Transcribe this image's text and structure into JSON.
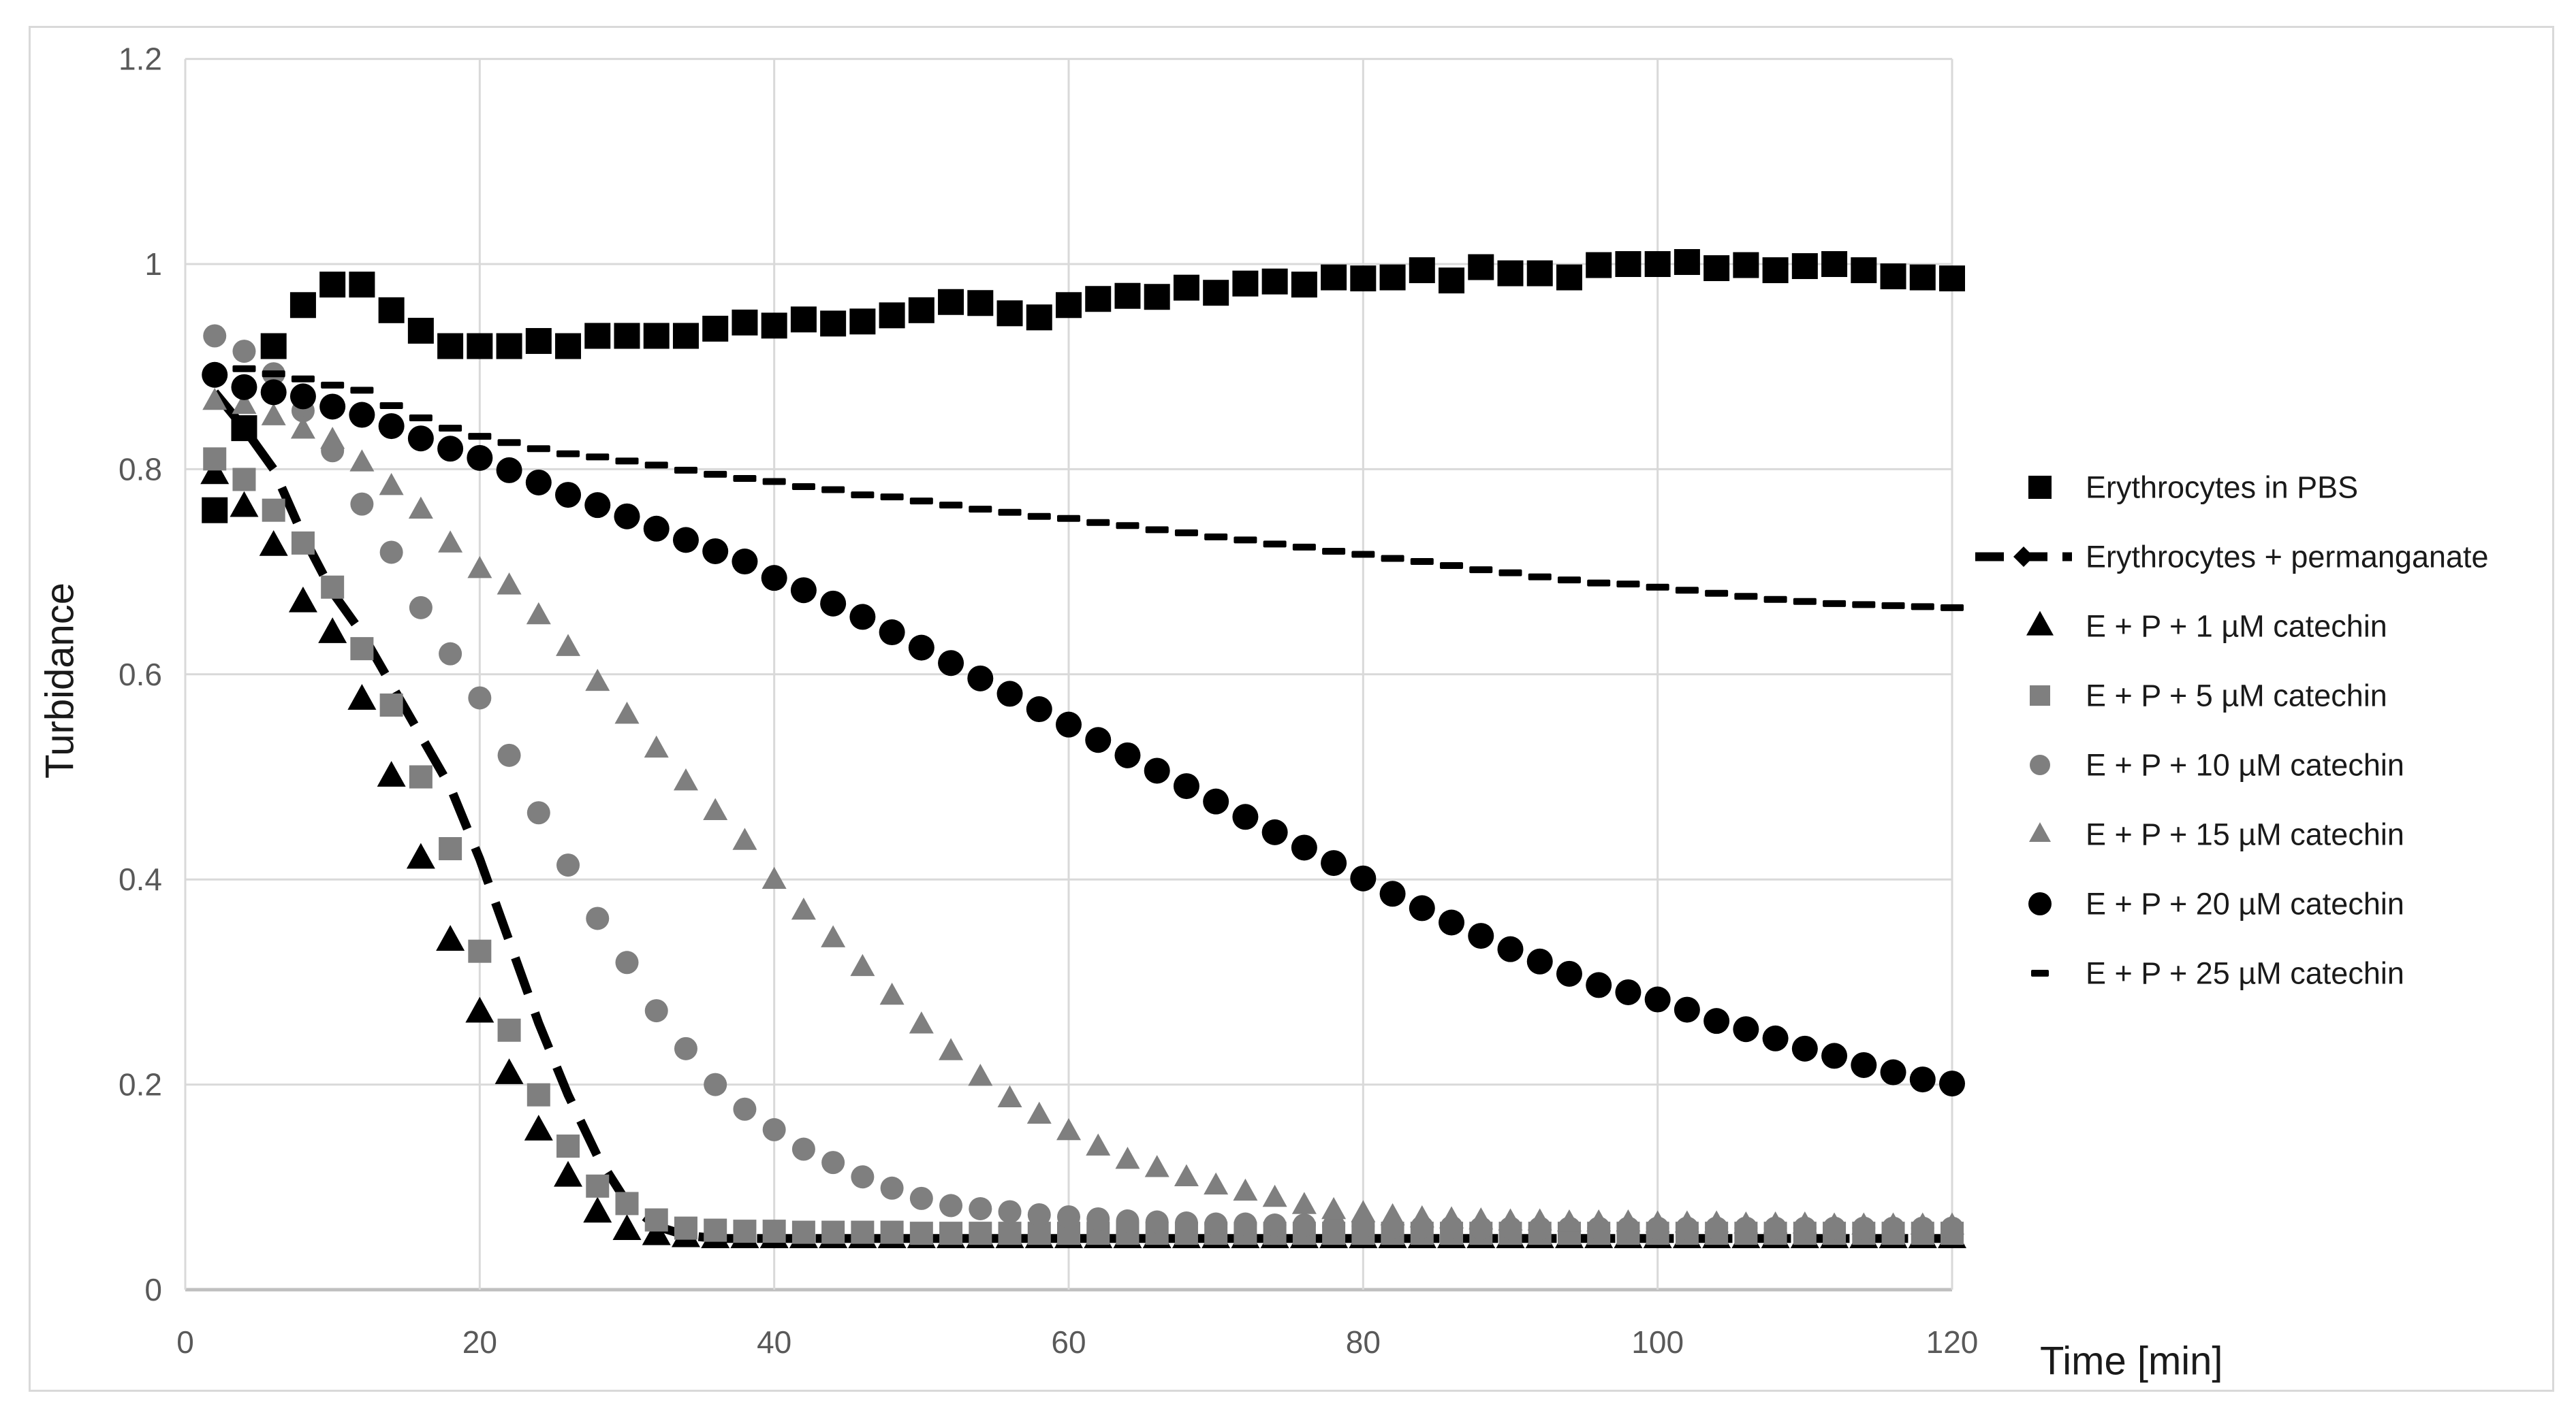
{
  "chart_data": {
    "type": "scatter",
    "title": "",
    "xlabel": "Time [min]",
    "ylabel": "Turbidance",
    "xlim": [
      0,
      120
    ],
    "ylim": [
      0,
      1.2
    ],
    "x_ticks": [
      0,
      20,
      40,
      60,
      80,
      100,
      120
    ],
    "y_ticks": [
      0,
      0.2,
      0.4,
      0.6,
      0.8,
      1,
      1.2
    ],
    "y_tick_labels": [
      "0",
      "0.2",
      "0.4",
      "0.6",
      "0.8",
      "1",
      "1.2"
    ],
    "grid": true,
    "legend_position": "right",
    "colors": {
      "black": "#000000",
      "gray": "#7f7f7f",
      "gridline": "#d9d9d9",
      "axis_line": "#bfbfbf",
      "tick_label": "#595959",
      "axis_title": "#1a1a1a",
      "legend_text": "#1a1a1a"
    },
    "series": [
      {
        "name": "Erythrocytes in PBS",
        "marker": "square",
        "color": "#000000",
        "size": 38,
        "line": "none",
        "x": [
          2,
          4,
          6,
          8,
          10,
          12,
          14,
          16,
          18,
          20,
          22,
          24,
          26,
          28,
          30,
          32,
          34,
          36,
          38,
          40,
          42,
          44,
          46,
          48,
          50,
          52,
          54,
          56,
          58,
          60,
          62,
          64,
          66,
          68,
          70,
          72,
          74,
          76,
          78,
          80,
          82,
          84,
          86,
          88,
          90,
          92,
          94,
          96,
          98,
          100,
          102,
          104,
          106,
          108,
          110,
          112,
          114,
          116,
          118,
          120
        ],
        "y": [
          0.76,
          0.84,
          0.92,
          0.96,
          0.98,
          0.98,
          0.955,
          0.935,
          0.92,
          0.92,
          0.92,
          0.925,
          0.92,
          0.93,
          0.93,
          0.93,
          0.93,
          0.937,
          0.943,
          0.94,
          0.946,
          0.942,
          0.944,
          0.95,
          0.955,
          0.963,
          0.962,
          0.952,
          0.948,
          0.96,
          0.966,
          0.969,
          0.968,
          0.977,
          0.972,
          0.981,
          0.983,
          0.98,
          0.987,
          0.986,
          0.987,
          0.994,
          0.984,
          0.997,
          0.991,
          0.991,
          0.987,
          0.999,
          1.0,
          1.0,
          1.002,
          0.996,
          0.999,
          0.994,
          0.998,
          1.0,
          0.994,
          0.988,
          0.987,
          0.986
        ]
      },
      {
        "name": "Erythrocytes + permanganate",
        "marker": "none",
        "color": "#000000",
        "size": 13,
        "line": "dashed",
        "x": [
          2,
          4,
          6,
          8,
          10,
          12,
          14,
          16,
          18,
          20,
          22,
          24,
          26,
          28,
          30,
          32,
          34,
          36,
          38,
          40,
          42,
          44,
          46,
          48,
          50,
          52,
          54,
          56,
          58,
          60,
          62,
          64,
          66,
          68,
          70,
          72,
          74,
          76,
          78,
          80,
          82,
          84,
          86,
          88,
          90,
          92,
          94,
          96,
          98,
          100,
          102,
          104,
          106,
          108,
          110,
          112,
          114,
          116,
          118,
          120
        ],
        "y": [
          0.875,
          0.84,
          0.8,
          0.735,
          0.68,
          0.64,
          0.59,
          0.54,
          0.49,
          0.42,
          0.34,
          0.26,
          0.19,
          0.13,
          0.085,
          0.062,
          0.053,
          0.05,
          0.05,
          0.05,
          0.05,
          0.05,
          0.05,
          0.05,
          0.05,
          0.05,
          0.05,
          0.05,
          0.05,
          0.05,
          0.05,
          0.05,
          0.05,
          0.05,
          0.05,
          0.05,
          0.05,
          0.05,
          0.05,
          0.05,
          0.05,
          0.05,
          0.05,
          0.05,
          0.05,
          0.05,
          0.05,
          0.05,
          0.05,
          0.05,
          0.05,
          0.05,
          0.05,
          0.05,
          0.05,
          0.05,
          0.05,
          0.05,
          0.05,
          0.05
        ]
      },
      {
        "name": "E + P + 1 µM catechin",
        "marker": "triangle",
        "color": "#000000",
        "size": 42,
        "line": "none",
        "x": [
          2,
          4,
          6,
          8,
          10,
          12,
          14,
          16,
          18,
          20,
          22,
          24,
          26,
          28,
          30,
          32,
          34,
          36,
          38,
          40,
          42,
          44,
          46,
          48,
          50,
          52,
          54,
          56,
          58,
          60,
          62,
          64,
          66,
          68,
          70,
          72,
          74,
          76,
          78,
          80,
          82,
          84,
          86,
          88,
          90,
          92,
          94,
          96,
          98,
          100,
          102,
          104,
          106,
          108,
          110,
          112,
          114,
          116,
          118,
          120
        ],
        "y": [
          0.795,
          0.763,
          0.725,
          0.67,
          0.64,
          0.575,
          0.5,
          0.42,
          0.34,
          0.27,
          0.21,
          0.155,
          0.11,
          0.075,
          0.058,
          0.053,
          0.051,
          0.05,
          0.05,
          0.05,
          0.05,
          0.05,
          0.05,
          0.05,
          0.05,
          0.05,
          0.05,
          0.05,
          0.05,
          0.05,
          0.05,
          0.05,
          0.05,
          0.05,
          0.05,
          0.05,
          0.05,
          0.05,
          0.05,
          0.05,
          0.05,
          0.05,
          0.05,
          0.05,
          0.05,
          0.05,
          0.05,
          0.05,
          0.05,
          0.05,
          0.05,
          0.05,
          0.05,
          0.05,
          0.05,
          0.05,
          0.05,
          0.05,
          0.05,
          0.05
        ]
      },
      {
        "name": "E + P + 5 µM catechin",
        "marker": "square",
        "color": "#7f7f7f",
        "size": 34,
        "line": "none",
        "x": [
          2,
          4,
          6,
          8,
          10,
          12,
          14,
          16,
          18,
          20,
          22,
          24,
          26,
          28,
          30,
          32,
          34,
          36,
          38,
          40,
          42,
          44,
          46,
          48,
          50,
          52,
          54,
          56,
          58,
          60,
          62,
          64,
          66,
          68,
          70,
          72,
          74,
          76,
          78,
          80,
          82,
          84,
          86,
          88,
          90,
          92,
          94,
          96,
          98,
          100,
          102,
          104,
          106,
          108,
          110,
          112,
          114,
          116,
          118,
          120
        ],
        "y": [
          0.81,
          0.79,
          0.76,
          0.728,
          0.685,
          0.625,
          0.57,
          0.5,
          0.43,
          0.33,
          0.253,
          0.19,
          0.14,
          0.101,
          0.084,
          0.068,
          0.06,
          0.058,
          0.057,
          0.057,
          0.056,
          0.056,
          0.056,
          0.056,
          0.055,
          0.055,
          0.055,
          0.055,
          0.055,
          0.055,
          0.055,
          0.055,
          0.055,
          0.055,
          0.055,
          0.055,
          0.055,
          0.055,
          0.055,
          0.055,
          0.055,
          0.055,
          0.055,
          0.055,
          0.055,
          0.055,
          0.055,
          0.055,
          0.055,
          0.055,
          0.055,
          0.055,
          0.055,
          0.055,
          0.055,
          0.055,
          0.055,
          0.055,
          0.055,
          0.055
        ]
      },
      {
        "name": "E + P + 10 µM catechin",
        "marker": "circle",
        "color": "#7f7f7f",
        "size": 17,
        "line": "none",
        "x": [
          2,
          4,
          6,
          8,
          10,
          12,
          14,
          16,
          18,
          20,
          22,
          24,
          26,
          28,
          30,
          32,
          34,
          36,
          38,
          40,
          42,
          44,
          46,
          48,
          50,
          52,
          54,
          56,
          58,
          60,
          62,
          64,
          66,
          68,
          70,
          72,
          74,
          76,
          78,
          80,
          82,
          84,
          86,
          88,
          90,
          92,
          94,
          96,
          98,
          100,
          102,
          104,
          106,
          108,
          110,
          112,
          114,
          116,
          118,
          120
        ],
        "y": [
          0.93,
          0.915,
          0.893,
          0.857,
          0.818,
          0.766,
          0.719,
          0.665,
          0.62,
          0.577,
          0.521,
          0.465,
          0.414,
          0.362,
          0.319,
          0.272,
          0.235,
          0.2,
          0.176,
          0.156,
          0.137,
          0.124,
          0.11,
          0.099,
          0.089,
          0.082,
          0.079,
          0.076,
          0.073,
          0.071,
          0.069,
          0.067,
          0.066,
          0.065,
          0.064,
          0.064,
          0.063,
          0.063,
          0.062,
          0.062,
          0.061,
          0.061,
          0.061,
          0.06,
          0.06,
          0.06,
          0.06,
          0.06,
          0.06,
          0.06,
          0.06,
          0.06,
          0.06,
          0.06,
          0.06,
          0.06,
          0.06,
          0.06,
          0.06,
          0.06
        ]
      },
      {
        "name": "E + P + 15 µM catechin",
        "marker": "triangle",
        "color": "#7f7f7f",
        "size": 36,
        "line": "none",
        "x": [
          2,
          4,
          6,
          8,
          10,
          12,
          14,
          16,
          18,
          20,
          22,
          24,
          26,
          28,
          30,
          32,
          34,
          36,
          38,
          40,
          42,
          44,
          46,
          48,
          50,
          52,
          54,
          56,
          58,
          60,
          62,
          64,
          66,
          68,
          70,
          72,
          74,
          76,
          78,
          80,
          82,
          84,
          86,
          88,
          90,
          92,
          94,
          96,
          98,
          100,
          102,
          104,
          106,
          108,
          110,
          112,
          114,
          116,
          118,
          120
        ],
        "y": [
          0.866,
          0.862,
          0.851,
          0.838,
          0.828,
          0.806,
          0.783,
          0.76,
          0.727,
          0.702,
          0.686,
          0.657,
          0.626,
          0.592,
          0.56,
          0.527,
          0.495,
          0.466,
          0.437,
          0.399,
          0.369,
          0.342,
          0.314,
          0.286,
          0.258,
          0.232,
          0.207,
          0.186,
          0.17,
          0.154,
          0.139,
          0.126,
          0.118,
          0.109,
          0.101,
          0.095,
          0.089,
          0.082,
          0.077,
          0.074,
          0.071,
          0.069,
          0.068,
          0.067,
          0.066,
          0.066,
          0.065,
          0.065,
          0.065,
          0.064,
          0.064,
          0.064,
          0.063,
          0.063,
          0.063,
          0.062,
          0.062,
          0.062,
          0.062,
          0.062
        ]
      },
      {
        "name": "E + P + 20 µM catechin",
        "marker": "circle",
        "color": "#000000",
        "size": 19,
        "line": "none",
        "x": [
          2,
          4,
          6,
          8,
          10,
          12,
          14,
          16,
          18,
          20,
          22,
          24,
          26,
          28,
          30,
          32,
          34,
          36,
          38,
          40,
          42,
          44,
          46,
          48,
          50,
          52,
          54,
          56,
          58,
          60,
          62,
          64,
          66,
          68,
          70,
          72,
          74,
          76,
          78,
          80,
          82,
          84,
          86,
          88,
          90,
          92,
          94,
          96,
          98,
          100,
          102,
          104,
          106,
          108,
          110,
          112,
          114,
          116,
          118,
          120
        ],
        "y": [
          0.892,
          0.88,
          0.875,
          0.871,
          0.861,
          0.853,
          0.842,
          0.83,
          0.82,
          0.811,
          0.799,
          0.787,
          0.775,
          0.765,
          0.754,
          0.742,
          0.731,
          0.72,
          0.71,
          0.694,
          0.682,
          0.669,
          0.656,
          0.641,
          0.626,
          0.611,
          0.596,
          0.581,
          0.566,
          0.551,
          0.536,
          0.521,
          0.506,
          0.491,
          0.476,
          0.461,
          0.446,
          0.431,
          0.416,
          0.401,
          0.386,
          0.372,
          0.358,
          0.345,
          0.332,
          0.32,
          0.308,
          0.297,
          0.29,
          0.283,
          0.273,
          0.262,
          0.254,
          0.245,
          0.235,
          0.228,
          0.219,
          0.212,
          0.205,
          0.201
        ]
      },
      {
        "name": "E + P + 25 µM catechin",
        "marker": "dash",
        "color": "#000000",
        "size": 34,
        "line": "none",
        "x": [
          4,
          6,
          8,
          10,
          12,
          14,
          16,
          18,
          20,
          22,
          24,
          26,
          28,
          30,
          32,
          34,
          36,
          38,
          40,
          42,
          44,
          46,
          48,
          50,
          52,
          54,
          56,
          58,
          60,
          62,
          64,
          66,
          68,
          70,
          72,
          74,
          76,
          78,
          80,
          82,
          84,
          86,
          88,
          90,
          92,
          94,
          96,
          98,
          100,
          102,
          104,
          106,
          108,
          110,
          112,
          114,
          116,
          118,
          120
        ],
        "y": [
          0.898,
          0.893,
          0.888,
          0.882,
          0.877,
          0.862,
          0.85,
          0.84,
          0.832,
          0.826,
          0.82,
          0.815,
          0.812,
          0.808,
          0.804,
          0.799,
          0.795,
          0.791,
          0.788,
          0.783,
          0.78,
          0.775,
          0.773,
          0.769,
          0.765,
          0.761,
          0.758,
          0.754,
          0.752,
          0.748,
          0.745,
          0.741,
          0.738,
          0.734,
          0.731,
          0.727,
          0.724,
          0.72,
          0.717,
          0.713,
          0.71,
          0.706,
          0.702,
          0.699,
          0.695,
          0.692,
          0.689,
          0.688,
          0.685,
          0.682,
          0.679,
          0.676,
          0.673,
          0.671,
          0.669,
          0.668,
          0.667,
          0.666,
          0.665
        ]
      }
    ],
    "legend": [
      {
        "label": "Erythrocytes in PBS"
      },
      {
        "label": "Erythrocytes + permanganate"
      },
      {
        "label": "E + P + 1 µM catechin"
      },
      {
        "label": "E + P + 5 µM catechin"
      },
      {
        "label": "E + P + 10 µM catechin"
      },
      {
        "label": "E + P + 15 µM catechin"
      },
      {
        "label": "E + P + 20 µM catechin"
      },
      {
        "label": "E + P + 25 µM catechin"
      }
    ]
  }
}
